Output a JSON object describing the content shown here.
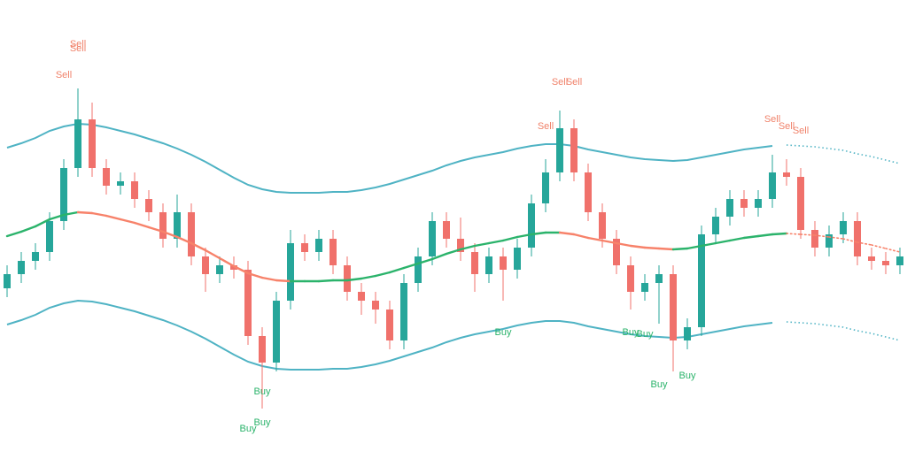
{
  "chart_data": {
    "type": "candlestick",
    "open": [
      210,
      226,
      241,
      251,
      286,
      346,
      401,
      346,
      326,
      331,
      311,
      296,
      266,
      296,
      246,
      226,
      236,
      231,
      156,
      126,
      196,
      261,
      251,
      266,
      236,
      206,
      196,
      186,
      151,
      216,
      246,
      286,
      266,
      251,
      226,
      246,
      231,
      256,
      306,
      341,
      391,
      341,
      296,
      266,
      236,
      206,
      216,
      226,
      151,
      166,
      271,
      291,
      311,
      301,
      311,
      341,
      336,
      276,
      256,
      271,
      286,
      246,
      241,
      236
    ],
    "high": [
      236,
      251,
      261,
      296,
      356,
      436,
      420,
      356,
      341,
      341,
      321,
      306,
      316,
      306,
      256,
      246,
      246,
      241,
      166,
      206,
      276,
      271,
      276,
      276,
      246,
      216,
      206,
      196,
      226,
      256,
      296,
      296,
      290,
      261,
      256,
      256,
      266,
      316,
      356,
      411,
      401,
      351,
      306,
      276,
      246,
      226,
      236,
      236,
      176,
      281,
      301,
      321,
      321,
      321,
      361,
      356,
      346,
      286,
      281,
      296,
      296,
      256,
      251,
      256
    ],
    "low": [
      200,
      216,
      231,
      241,
      276,
      336,
      336,
      316,
      316,
      301,
      286,
      256,
      256,
      236,
      206,
      216,
      221,
      146,
      74,
      116,
      186,
      241,
      241,
      226,
      196,
      180,
      170,
      141,
      141,
      206,
      236,
      256,
      241,
      206,
      216,
      196,
      221,
      246,
      296,
      331,
      331,
      286,
      256,
      226,
      186,
      196,
      170,
      116,
      141,
      156,
      261,
      281,
      291,
      291,
      301,
      326,
      266,
      246,
      246,
      261,
      236,
      231,
      226,
      226
    ],
    "close": [
      226,
      241,
      251,
      286,
      346,
      401,
      346,
      326,
      331,
      311,
      296,
      266,
      296,
      246,
      226,
      236,
      231,
      156,
      126,
      196,
      261,
      251,
      266,
      236,
      206,
      196,
      186,
      151,
      216,
      246,
      286,
      266,
      251,
      226,
      246,
      231,
      256,
      306,
      341,
      391,
      341,
      296,
      266,
      236,
      206,
      216,
      226,
      151,
      166,
      271,
      291,
      311,
      301,
      311,
      341,
      336,
      276,
      256,
      271,
      286,
      246,
      241,
      236,
      246
    ],
    "up_color": "#26a69a",
    "down_color": "#f0716b",
    "basis": {
      "values": [
        269,
        274,
        280,
        288,
        293,
        296,
        295,
        292,
        288,
        284,
        279,
        274,
        268,
        261,
        253,
        244,
        235,
        227,
        222,
        219,
        218,
        218,
        218,
        219,
        219,
        221,
        224,
        228,
        233,
        238,
        243,
        249,
        254,
        258,
        261,
        264,
        268,
        271,
        273,
        273,
        271,
        267,
        264,
        261,
        258,
        256,
        255,
        254,
        255,
        258,
        261,
        264,
        267,
        269,
        271,
        272,
        271,
        270,
        268,
        266,
        262,
        259,
        255,
        251
      ],
      "rising_color": "#2bb36b",
      "falling_color": "#f7826a"
    },
    "bands": [
      {
        "values": [
          369,
          374,
          380,
          388,
          393,
          396,
          395,
          392,
          388,
          384,
          379,
          374,
          368,
          361,
          353,
          344,
          335,
          327,
          322,
          319,
          318,
          318,
          318,
          319,
          319,
          321,
          324,
          328,
          333,
          338,
          343,
          349,
          354,
          358,
          361,
          364,
          368,
          371,
          373,
          373,
          371,
          367,
          364,
          361,
          358,
          356,
          355,
          354,
          355,
          358,
          361,
          364,
          367,
          369,
          371,
          372,
          371,
          370,
          368,
          366,
          362,
          359,
          355,
          351
        ],
        "color": "#4fb3c4"
      },
      {
        "values": [
          169,
          174,
          180,
          188,
          193,
          196,
          195,
          192,
          188,
          184,
          179,
          174,
          168,
          161,
          153,
          144,
          135,
          127,
          122,
          119,
          118,
          118,
          118,
          119,
          119,
          121,
          124,
          128,
          133,
          138,
          143,
          149,
          154,
          158,
          161,
          164,
          168,
          171,
          173,
          173,
          171,
          167,
          164,
          161,
          158,
          156,
          155,
          154,
          155,
          158,
          161,
          164,
          167,
          169,
          171,
          172,
          171,
          170,
          168,
          166,
          162,
          159,
          155,
          151
        ],
        "color": "#4fb3c4"
      }
    ],
    "projection_start": 55,
    "signals": [
      {
        "label": "Sell",
        "index": 4,
        "value": 451,
        "color": "#f0826a"
      },
      {
        "label": "Sell",
        "index": 5,
        "value": 486,
        "color": "#f0826a"
      },
      {
        "label": "Sell",
        "index": 5,
        "value": 481,
        "color": "#f0826a"
      },
      {
        "label": "Sell",
        "index": 38,
        "value": 393,
        "color": "#f0826a"
      },
      {
        "label": "Sell",
        "index": 39,
        "value": 443,
        "color": "#f0826a"
      },
      {
        "label": "Sell",
        "index": 40,
        "value": 443,
        "color": "#f0826a"
      },
      {
        "label": "Sell",
        "index": 54,
        "value": 401,
        "color": "#f0826a"
      },
      {
        "label": "Sell",
        "index": 55,
        "value": 393,
        "color": "#f0826a"
      },
      {
        "label": "Sell",
        "index": 56,
        "value": 388,
        "color": "#f0826a"
      },
      {
        "label": "Buy",
        "index": 18,
        "value": 93,
        "color": "#2bb36b"
      },
      {
        "label": "Buy",
        "index": 18,
        "value": 58,
        "color": "#2bb36b"
      },
      {
        "label": "Buy",
        "index": 17,
        "value": 51,
        "color": "#2bb36b"
      },
      {
        "label": "Buy",
        "index": 35,
        "value": 160,
        "color": "#2bb36b"
      },
      {
        "label": "Buy",
        "index": 44,
        "value": 160,
        "color": "#2bb36b"
      },
      {
        "label": "Buy",
        "index": 45,
        "value": 158,
        "color": "#2bb36b"
      },
      {
        "label": "Buy",
        "index": 46,
        "value": 101,
        "color": "#2bb36b"
      },
      {
        "label": "Buy",
        "index": 48,
        "value": 111,
        "color": "#2bb36b"
      }
    ]
  }
}
